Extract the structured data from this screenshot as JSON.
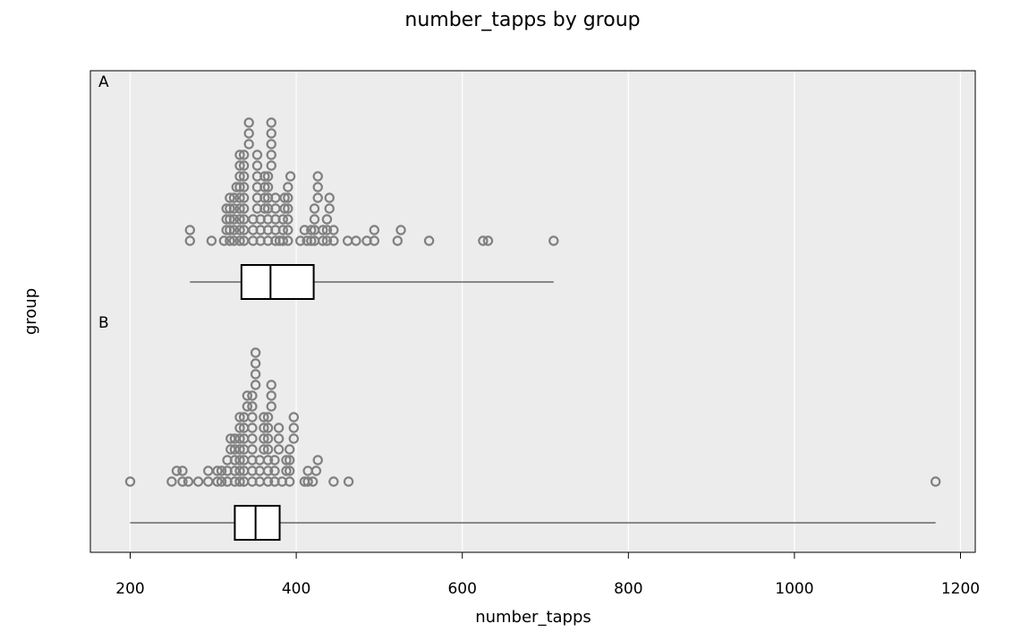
{
  "chart_data": {
    "type": "boxplot-dotplot",
    "title": "number_tapps by group",
    "xlabel": "number_tapps",
    "ylabel": "group",
    "xlim": [
      175,
      1220
    ],
    "xticks": [
      200,
      400,
      600,
      800,
      1000,
      1200
    ],
    "grid": true,
    "background": "#ececec",
    "point_color": "#808080",
    "groups": [
      {
        "name": "A",
        "box": {
          "min": 272,
          "q1": 334,
          "median": 369,
          "q3": 421,
          "max": 710
        },
        "points": [
          [
            272,
            1
          ],
          [
            272,
            2
          ],
          [
            298,
            1
          ],
          [
            313,
            1
          ],
          [
            316,
            2
          ],
          [
            316,
            3
          ],
          [
            316,
            4
          ],
          [
            320,
            1
          ],
          [
            320,
            2
          ],
          [
            320,
            3
          ],
          [
            320,
            4
          ],
          [
            320,
            5
          ],
          [
            325,
            1
          ],
          [
            325,
            2
          ],
          [
            325,
            3
          ],
          [
            325,
            4
          ],
          [
            325,
            5
          ],
          [
            328,
            6
          ],
          [
            332,
            1
          ],
          [
            332,
            2
          ],
          [
            332,
            3
          ],
          [
            332,
            4
          ],
          [
            332,
            5
          ],
          [
            332,
            6
          ],
          [
            332,
            7
          ],
          [
            332,
            8
          ],
          [
            332,
            9
          ],
          [
            337,
            1
          ],
          [
            337,
            2
          ],
          [
            337,
            3
          ],
          [
            337,
            4
          ],
          [
            337,
            5
          ],
          [
            337,
            6
          ],
          [
            337,
            7
          ],
          [
            337,
            8
          ],
          [
            337,
            9
          ],
          [
            343,
            10
          ],
          [
            343,
            11
          ],
          [
            343,
            12
          ],
          [
            348,
            1
          ],
          [
            348,
            2
          ],
          [
            348,
            3
          ],
          [
            353,
            4
          ],
          [
            353,
            5
          ],
          [
            353,
            6
          ],
          [
            353,
            7
          ],
          [
            353,
            8
          ],
          [
            353,
            9
          ],
          [
            357,
            1
          ],
          [
            357,
            2
          ],
          [
            357,
            3
          ],
          [
            362,
            4
          ],
          [
            362,
            5
          ],
          [
            362,
            6
          ],
          [
            362,
            7
          ],
          [
            366,
            1
          ],
          [
            366,
            2
          ],
          [
            366,
            3
          ],
          [
            366,
            4
          ],
          [
            366,
            5
          ],
          [
            366,
            6
          ],
          [
            366,
            7
          ],
          [
            370,
            8
          ],
          [
            370,
            9
          ],
          [
            370,
            10
          ],
          [
            370,
            11
          ],
          [
            370,
            12
          ],
          [
            375,
            1
          ],
          [
            375,
            2
          ],
          [
            375,
            3
          ],
          [
            375,
            4
          ],
          [
            375,
            5
          ],
          [
            380,
            1
          ],
          [
            384,
            1
          ],
          [
            384,
            2
          ],
          [
            384,
            3
          ],
          [
            386,
            4
          ],
          [
            386,
            5
          ],
          [
            390,
            1
          ],
          [
            390,
            2
          ],
          [
            390,
            3
          ],
          [
            390,
            4
          ],
          [
            390,
            5
          ],
          [
            390,
            6
          ],
          [
            393,
            7
          ],
          [
            405,
            1
          ],
          [
            410,
            2
          ],
          [
            413,
            1
          ],
          [
            418,
            1
          ],
          [
            418,
            2
          ],
          [
            422,
            1
          ],
          [
            422,
            2
          ],
          [
            422,
            3
          ],
          [
            422,
            4
          ],
          [
            426,
            5
          ],
          [
            426,
            6
          ],
          [
            426,
            7
          ],
          [
            432,
            1
          ],
          [
            432,
            2
          ],
          [
            437,
            1
          ],
          [
            437,
            2
          ],
          [
            437,
            3
          ],
          [
            440,
            4
          ],
          [
            440,
            5
          ],
          [
            445,
            1
          ],
          [
            445,
            2
          ],
          [
            462,
            1
          ],
          [
            472,
            1
          ],
          [
            485,
            1
          ],
          [
            494,
            1
          ],
          [
            494,
            2
          ],
          [
            522,
            1
          ],
          [
            526,
            2
          ],
          [
            560,
            1
          ],
          [
            625,
            1
          ],
          [
            631,
            1
          ],
          [
            710,
            1
          ]
        ]
      },
      {
        "name": "B",
        "box": {
          "min": 200,
          "q1": 326,
          "median": 351,
          "q3": 380,
          "max": 1170
        },
        "points": [
          [
            200,
            1
          ],
          [
            250,
            1
          ],
          [
            256,
            2
          ],
          [
            263,
            1
          ],
          [
            263,
            2
          ],
          [
            270,
            1
          ],
          [
            282,
            1
          ],
          [
            294,
            1
          ],
          [
            294,
            2
          ],
          [
            305,
            1
          ],
          [
            305,
            2
          ],
          [
            310,
            1
          ],
          [
            310,
            2
          ],
          [
            317,
            1
          ],
          [
            317,
            2
          ],
          [
            317,
            3
          ],
          [
            321,
            4
          ],
          [
            321,
            5
          ],
          [
            326,
            1
          ],
          [
            326,
            2
          ],
          [
            326,
            3
          ],
          [
            326,
            4
          ],
          [
            326,
            5
          ],
          [
            332,
            1
          ],
          [
            332,
            2
          ],
          [
            332,
            3
          ],
          [
            332,
            4
          ],
          [
            332,
            5
          ],
          [
            332,
            6
          ],
          [
            332,
            7
          ],
          [
            337,
            1
          ],
          [
            337,
            2
          ],
          [
            337,
            3
          ],
          [
            337,
            4
          ],
          [
            337,
            5
          ],
          [
            337,
            6
          ],
          [
            337,
            7
          ],
          [
            341,
            8
          ],
          [
            341,
            9
          ],
          [
            347,
            1
          ],
          [
            347,
            2
          ],
          [
            347,
            3
          ],
          [
            347,
            4
          ],
          [
            347,
            5
          ],
          [
            347,
            6
          ],
          [
            347,
            7
          ],
          [
            347,
            8
          ],
          [
            347,
            9
          ],
          [
            351,
            10
          ],
          [
            351,
            11
          ],
          [
            351,
            12
          ],
          [
            351,
            13
          ],
          [
            356,
            1
          ],
          [
            356,
            2
          ],
          [
            356,
            3
          ],
          [
            361,
            4
          ],
          [
            361,
            5
          ],
          [
            361,
            6
          ],
          [
            361,
            7
          ],
          [
            366,
            1
          ],
          [
            366,
            2
          ],
          [
            366,
            3
          ],
          [
            366,
            4
          ],
          [
            366,
            5
          ],
          [
            366,
            6
          ],
          [
            366,
            7
          ],
          [
            370,
            8
          ],
          [
            370,
            9
          ],
          [
            370,
            10
          ],
          [
            374,
            1
          ],
          [
            374,
            2
          ],
          [
            374,
            3
          ],
          [
            379,
            4
          ],
          [
            379,
            5
          ],
          [
            379,
            6
          ],
          [
            383,
            1
          ],
          [
            388,
            2
          ],
          [
            388,
            3
          ],
          [
            392,
            1
          ],
          [
            392,
            2
          ],
          [
            392,
            3
          ],
          [
            392,
            4
          ],
          [
            397,
            5
          ],
          [
            397,
            6
          ],
          [
            397,
            7
          ],
          [
            410,
            1
          ],
          [
            414,
            2
          ],
          [
            414,
            1
          ],
          [
            420,
            1
          ],
          [
            424,
            2
          ],
          [
            426,
            3
          ],
          [
            445,
            1
          ],
          [
            463,
            1
          ],
          [
            1170,
            1
          ]
        ]
      }
    ]
  }
}
